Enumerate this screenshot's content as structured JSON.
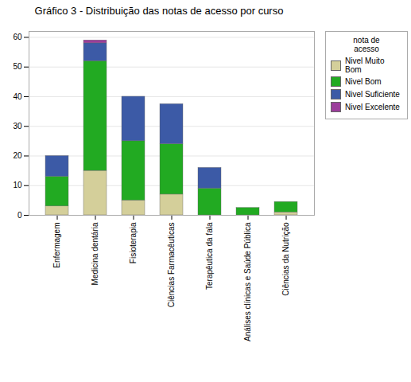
{
  "chart_data": {
    "type": "bar",
    "stacked": true,
    "grid": true,
    "title": "Gráfico 3 - Distribuição das notas de acesso por curso",
    "legend_title": "nota de\nacesso",
    "categories": [
      "Enfermagem",
      "Medicina dentária",
      "Fisioterapia",
      "Ciências Farmacêuticas",
      "Terapêutica da fala",
      "Análises clínicas e Saúde Pública",
      "Ciências da Nutrição"
    ],
    "series": [
      {
        "name": "Nivel Muito Bom",
        "color": "#d4cf9a",
        "values": [
          3,
          15,
          5,
          7,
          0,
          0,
          1
        ]
      },
      {
        "name": "Nivel Bom",
        "color": "#22aa22",
        "values": [
          10,
          37,
          20,
          17,
          9,
          2.5,
          3.5
        ]
      },
      {
        "name": "Nivel Suficiente",
        "color": "#3c5aa6",
        "values": [
          7,
          6,
          15,
          13.5,
          7,
          0,
          0
        ]
      },
      {
        "name": "Nivel Excelente",
        "color": "#9b3d9b",
        "values": [
          0,
          1,
          0,
          0,
          0,
          0,
          0
        ]
      }
    ],
    "ylim": [
      0,
      62
    ],
    "yticks": [
      0,
      10,
      20,
      30,
      40,
      50,
      60
    ]
  }
}
